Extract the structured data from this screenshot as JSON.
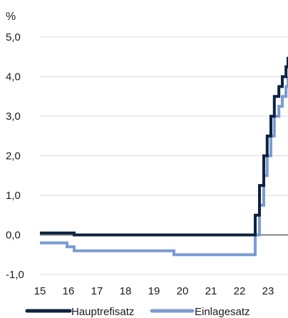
{
  "chart_data": {
    "type": "line",
    "title": "",
    "unit_label": "%",
    "xlabel": "",
    "ylabel": "",
    "xlim": [
      2015,
      2023.7
    ],
    "ylim": [
      -1.0,
      5.0
    ],
    "y_ticks": [
      {
        "value": 5.0,
        "label": "5,0"
      },
      {
        "value": 4.0,
        "label": "4,0"
      },
      {
        "value": 3.0,
        "label": "3,0"
      },
      {
        "value": 2.0,
        "label": "2,0"
      },
      {
        "value": 1.0,
        "label": "1,0"
      },
      {
        "value": 0.0,
        "label": "0,0"
      },
      {
        "value": -1.0,
        "label": "-1,0"
      }
    ],
    "x_ticks": [
      {
        "value": 2015,
        "label": "15"
      },
      {
        "value": 2016,
        "label": "16"
      },
      {
        "value": 2017,
        "label": "17"
      },
      {
        "value": 2018,
        "label": "18"
      },
      {
        "value": 2019,
        "label": "19"
      },
      {
        "value": 2020,
        "label": "20"
      },
      {
        "value": 2021,
        "label": "21"
      },
      {
        "value": 2022,
        "label": "22"
      },
      {
        "value": 2023,
        "label": "23"
      }
    ],
    "grid": "horizontal",
    "legend_position": "bottom",
    "series": [
      {
        "name": "Hauptrefisatz",
        "color": "#0d2240",
        "step": true,
        "points": [
          [
            2015.0,
            0.05
          ],
          [
            2016.2,
            0.0
          ],
          [
            2022.55,
            0.5
          ],
          [
            2022.7,
            1.25
          ],
          [
            2022.85,
            2.0
          ],
          [
            2022.97,
            2.5
          ],
          [
            2023.1,
            3.0
          ],
          [
            2023.22,
            3.5
          ],
          [
            2023.38,
            3.75
          ],
          [
            2023.5,
            4.0
          ],
          [
            2023.63,
            4.25
          ],
          [
            2023.7,
            4.5
          ]
        ]
      },
      {
        "name": "Einlagesatz",
        "color": "#7a9bd4",
        "step": true,
        "points": [
          [
            2015.0,
            -0.2
          ],
          [
            2015.95,
            -0.3
          ],
          [
            2016.2,
            -0.4
          ],
          [
            2019.7,
            -0.5
          ],
          [
            2022.55,
            0.0
          ],
          [
            2022.7,
            0.75
          ],
          [
            2022.85,
            1.5
          ],
          [
            2022.97,
            2.0
          ],
          [
            2023.1,
            2.5
          ],
          [
            2023.22,
            3.0
          ],
          [
            2023.38,
            3.25
          ],
          [
            2023.5,
            3.5
          ],
          [
            2023.63,
            3.75
          ],
          [
            2023.7,
            4.0
          ]
        ]
      }
    ],
    "zero_line_color": "#808080",
    "grid_color": "#d9d9d9"
  }
}
